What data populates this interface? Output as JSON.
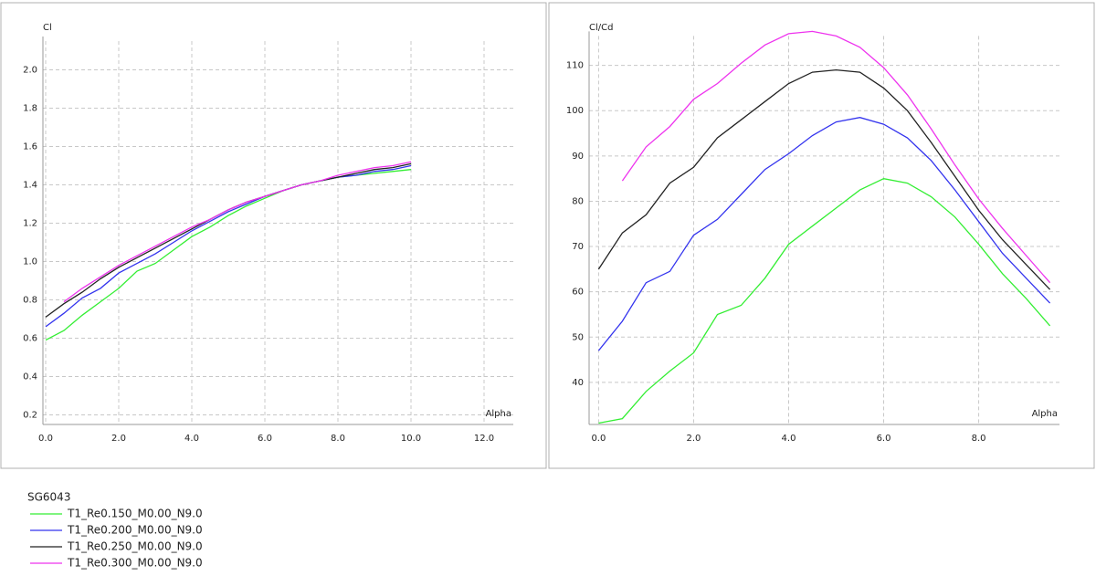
{
  "chart_data": [
    {
      "type": "line",
      "ylabel": "Cl",
      "xlabel": "Alpha",
      "x": [
        0,
        0.5,
        1,
        1.5,
        2,
        2.5,
        3,
        3.5,
        4,
        4.5,
        5,
        5.5,
        6,
        6.5,
        7,
        7.5,
        8,
        8.5,
        9,
        9.5,
        10
      ],
      "xlim": [
        -0.075,
        12.8
      ],
      "ylim": [
        0.15,
        2.15
      ],
      "grid": true,
      "xticks": [
        {
          "value": 0,
          "label": "0.0"
        },
        {
          "value": 2,
          "label": "2.0"
        },
        {
          "value": 4,
          "label": "4.0"
        },
        {
          "value": 6,
          "label": "6.0"
        },
        {
          "value": 8,
          "label": "8.0"
        },
        {
          "value": 10,
          "label": "10.0"
        },
        {
          "value": 12,
          "label": "12.0"
        }
      ],
      "yticks": [
        0.2,
        0.4,
        0.6,
        0.8,
        {
          "value": 1,
          "label": "1.0"
        },
        1.2,
        1.4,
        1.6,
        1.8,
        {
          "value": 2,
          "label": "2.0"
        }
      ],
      "series": [
        {
          "name": "T1_Re0.150_M0.00_N9.0",
          "color": "#33ee33",
          "values": [
            0.59,
            0.64,
            0.72,
            0.79,
            0.86,
            0.95,
            0.99,
            1.06,
            1.13,
            1.18,
            1.24,
            1.29,
            1.33,
            1.37,
            1.4,
            1.42,
            1.44,
            1.45,
            1.46,
            1.47,
            1.48
          ]
        },
        {
          "name": "T1_Re0.200_M0.00_N9.0",
          "color": "#3333ee",
          "values": [
            0.66,
            0.73,
            0.81,
            0.86,
            0.94,
            0.99,
            1.04,
            1.1,
            1.16,
            1.21,
            1.26,
            1.3,
            1.34,
            1.37,
            1.4,
            1.42,
            1.44,
            1.45,
            1.47,
            1.48,
            1.5
          ]
        },
        {
          "name": "T1_Re0.250_M0.00_N9.0",
          "color": "#222222",
          "values": [
            0.71,
            0.78,
            0.84,
            0.91,
            0.97,
            1.02,
            1.07,
            1.12,
            1.17,
            1.22,
            1.27,
            1.31,
            1.34,
            1.37,
            1.4,
            1.42,
            1.44,
            1.46,
            1.48,
            1.49,
            1.51
          ]
        },
        {
          "name": "T1_Re0.300_M0.00_N9.0",
          "color": "#ee33ee",
          "values": [
            null,
            0.79,
            0.86,
            0.92,
            0.98,
            1.03,
            1.08,
            1.13,
            1.18,
            1.22,
            1.27,
            1.31,
            1.34,
            1.37,
            1.4,
            1.42,
            1.45,
            1.47,
            1.49,
            1.5,
            1.52
          ]
        }
      ]
    },
    {
      "type": "line",
      "ylabel": "Cl/Cd",
      "xlabel": "Alpha",
      "x": [
        0,
        0.5,
        1,
        1.5,
        2,
        2.5,
        3,
        3.5,
        4,
        4.5,
        5,
        5.5,
        6,
        6.5,
        7,
        7.5,
        8,
        8.5,
        9,
        9.5
      ],
      "xlim": [
        -0.2,
        9.7
      ],
      "ylim": [
        30.7,
        116.5
      ],
      "grid": true,
      "xticks": [
        {
          "value": 0,
          "label": "0.0"
        },
        {
          "value": 2,
          "label": "2.0"
        },
        {
          "value": 4,
          "label": "4.0"
        },
        {
          "value": 6,
          "label": "6.0"
        },
        {
          "value": 8,
          "label": "8.0"
        }
      ],
      "yticks": [
        40,
        50,
        60,
        70,
        80,
        90,
        100,
        110
      ],
      "series": [
        {
          "color": "#33ee33",
          "values": [
            31,
            32,
            38,
            42.5,
            46.5,
            55,
            57,
            63,
            70.5,
            74.5,
            78.5,
            82.5,
            85,
            84,
            81,
            76.5,
            70.5,
            64,
            58.5,
            52.5
          ]
        },
        {
          "color": "#3333ee",
          "values": [
            47,
            53.5,
            62,
            64.5,
            72.5,
            76,
            81.5,
            87,
            90.5,
            94.5,
            97.5,
            98.5,
            97,
            94,
            89,
            82.5,
            75.5,
            68.5,
            63,
            57.5
          ]
        },
        {
          "color": "#222222",
          "values": [
            65,
            73,
            77,
            84,
            87.5,
            94,
            98,
            102,
            106,
            108.5,
            109,
            108.5,
            105,
            100,
            93,
            85.5,
            78,
            71.5,
            66,
            60.5
          ]
        },
        {
          "color": "#ee33ee",
          "values": [
            null,
            84.5,
            92,
            96.5,
            102.5,
            106,
            110.5,
            114.5,
            117,
            117.5,
            116.5,
            114,
            109.5,
            103.5,
            96,
            88,
            80.5,
            74,
            68,
            62
          ]
        }
      ]
    }
  ],
  "legend": {
    "title": "SG6043"
  }
}
